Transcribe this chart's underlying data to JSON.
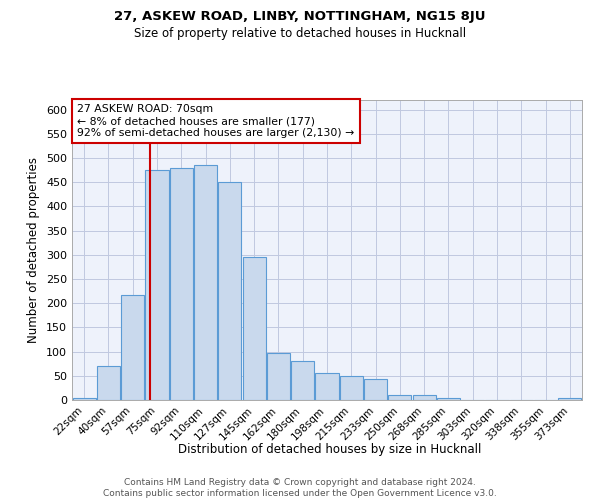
{
  "title1": "27, ASKEW ROAD, LINBY, NOTTINGHAM, NG15 8JU",
  "title2": "Size of property relative to detached houses in Hucknall",
  "xlabel": "Distribution of detached houses by size in Hucknall",
  "ylabel": "Number of detached properties",
  "categories": [
    "22sqm",
    "40sqm",
    "57sqm",
    "75sqm",
    "92sqm",
    "110sqm",
    "127sqm",
    "145sqm",
    "162sqm",
    "180sqm",
    "198sqm",
    "215sqm",
    "233sqm",
    "250sqm",
    "268sqm",
    "285sqm",
    "303sqm",
    "320sqm",
    "338sqm",
    "355sqm",
    "373sqm"
  ],
  "values": [
    5,
    70,
    218,
    475,
    480,
    485,
    450,
    295,
    97,
    80,
    55,
    50,
    43,
    11,
    11,
    5,
    0,
    0,
    0,
    0,
    5
  ],
  "bar_color": "#c9d9ed",
  "bar_edge_color": "#5b9bd5",
  "grid_color": "#c0c8e0",
  "bg_color": "#eef2fb",
  "vline_color": "#cc0000",
  "annotation_title": "27 ASKEW ROAD: 70sqm",
  "annotation_line1": "← 8% of detached houses are smaller (177)",
  "annotation_line2": "92% of semi-detached houses are larger (2,130) →",
  "annotation_box_color": "#ffffff",
  "annotation_box_edge": "#cc0000",
  "footer1": "Contains HM Land Registry data © Crown copyright and database right 2024.",
  "footer2": "Contains public sector information licensed under the Open Government Licence v3.0.",
  "ylim": [
    0,
    620
  ],
  "yticks": [
    0,
    50,
    100,
    150,
    200,
    250,
    300,
    350,
    400,
    450,
    500,
    550,
    600
  ]
}
